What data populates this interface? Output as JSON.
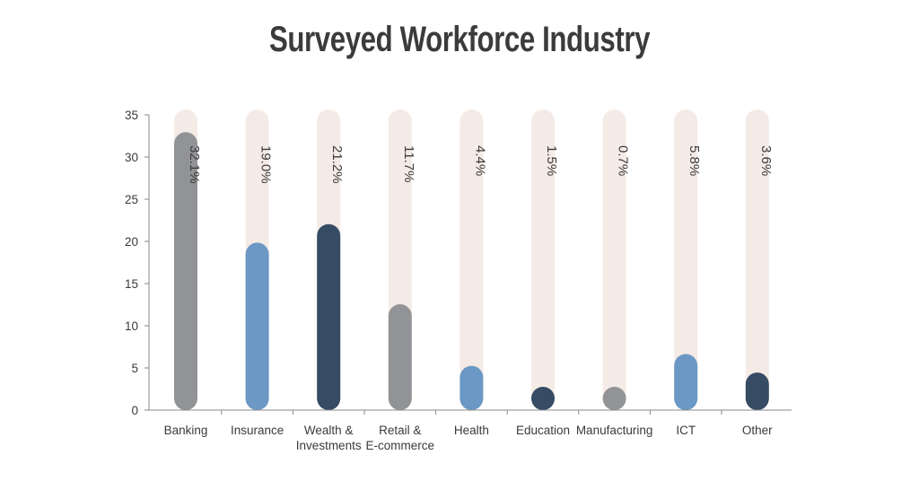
{
  "chart_data": {
    "type": "bar",
    "title": "Surveyed Workforce Industry",
    "categories": [
      [
        "Banking"
      ],
      [
        "Insurance"
      ],
      [
        "Wealth &",
        "Investments"
      ],
      [
        "Retail &",
        "E-commerce"
      ],
      [
        "Health"
      ],
      [
        "Education"
      ],
      [
        "Manufacturing"
      ],
      [
        "ICT"
      ],
      [
        "Other"
      ]
    ],
    "values": [
      32.1,
      19.0,
      21.2,
      11.7,
      4.4,
      1.5,
      0.7,
      5.8,
      3.6
    ],
    "value_labels": [
      "32.1%",
      "19.0%",
      "21.2%",
      "11.7%",
      "4.4%",
      "1.5%",
      "0.7%",
      "5.8%",
      "3.6%"
    ],
    "bar_colors": [
      "#929396",
      "#6b98c4",
      "#364b64",
      "#929396",
      "#6b98c4",
      "#364b64",
      "#929396",
      "#6b98c4",
      "#364b64"
    ],
    "track_color": "#f5ebe6",
    "xlabel": "",
    "ylabel": "",
    "ylim": [
      0,
      35
    ],
    "yticks": [
      0,
      5,
      10,
      15,
      20,
      25,
      30,
      35
    ],
    "grid": false,
    "legend": "none"
  }
}
